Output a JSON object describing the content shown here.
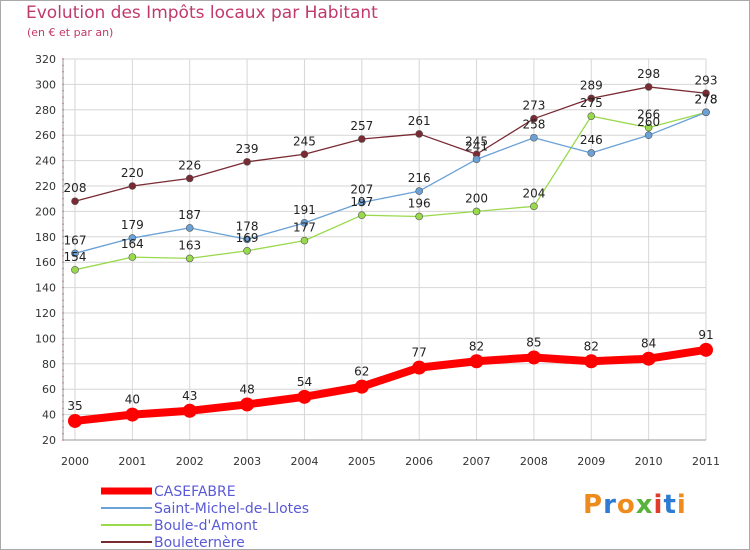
{
  "chart_data": {
    "type": "line",
    "title": "Evolution des Impôts locaux par Habitant",
    "subtitle": "(en € et par an)",
    "x": [
      "2000",
      "2001",
      "2002",
      "2003",
      "2004",
      "2005",
      "2006",
      "2007",
      "2008",
      "2009",
      "2010",
      "2011"
    ],
    "ylim": [
      20,
      320
    ],
    "yticks": [
      20,
      40,
      60,
      80,
      100,
      120,
      140,
      160,
      180,
      200,
      220,
      240,
      260,
      280,
      300,
      320
    ],
    "grid": true,
    "legend_position": "bottom-left",
    "series": [
      {
        "name": "CASEFABRE",
        "values": [
          35,
          40,
          43,
          48,
          54,
          62,
          77,
          82,
          85,
          82,
          84,
          91
        ],
        "color": "#ff0000",
        "line_width": 8,
        "marker_radius": 7
      },
      {
        "name": "Saint-Michel-de-Llotes",
        "values": [
          167,
          179,
          187,
          178,
          191,
          207,
          216,
          241,
          258,
          246,
          260,
          278
        ],
        "color": "#6aa1d6",
        "line_width": 1.3,
        "marker_radius": 3.5
      },
      {
        "name": "Boule-d'Amont",
        "values": [
          154,
          164,
          163,
          169,
          177,
          197,
          196,
          200,
          204,
          275,
          266,
          278
        ],
        "color": "#99d94c",
        "line_width": 1.3,
        "marker_radius": 3.5
      },
      {
        "name": "Bouleternère",
        "values": [
          208,
          220,
          226,
          239,
          245,
          257,
          261,
          245,
          273,
          289,
          298,
          293
        ],
        "color": "#7a2a33",
        "line_width": 1.3,
        "marker_radius": 3.5
      }
    ]
  },
  "logo": {
    "text": "Proxiti",
    "colors": [
      "#ef8a1c",
      "#2e7bd6",
      "#ef8a1c",
      "#58b33a",
      "#e13b2c",
      "#2e7bd6",
      "#ef8a1c"
    ]
  }
}
